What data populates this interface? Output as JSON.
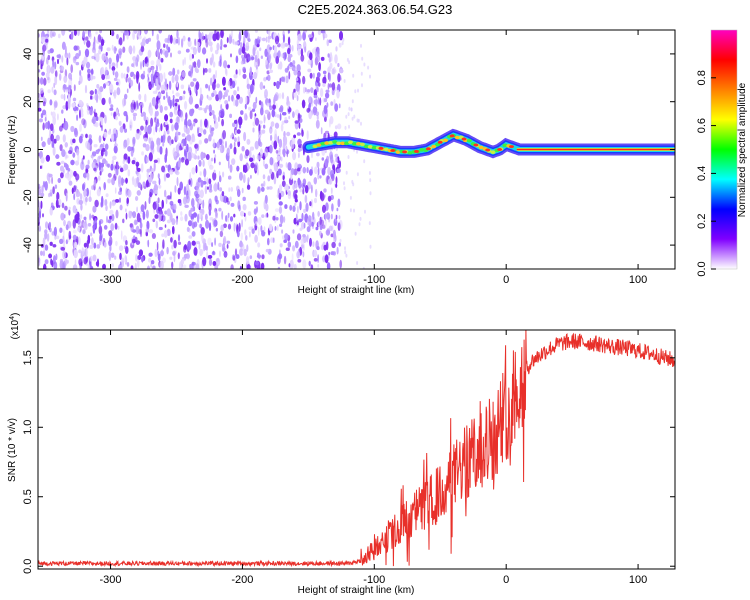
{
  "title": "C2E5.2024.363.06.54.G23",
  "chart_data": [
    {
      "type": "heatmap",
      "xlabel": "Height of straight line (km)",
      "ylabel": "Frequency (Hz)",
      "xlim": [
        -355,
        128
      ],
      "ylim": [
        -50,
        50
      ],
      "xticks": [
        -300,
        -200,
        -100,
        0,
        100
      ],
      "xtick_labels": [
        "-300",
        "-200",
        "-100",
        "0",
        "100"
      ],
      "yticks": [
        -40,
        -20,
        0,
        20,
        40
      ],
      "ytick_labels": [
        "-40",
        "-20",
        "0",
        "20",
        "40"
      ],
      "noise_region_x": [
        -355,
        -125
      ],
      "signal_track": {
        "x": [
          -150,
          -140,
          -130,
          -120,
          -110,
          -100,
          -90,
          -80,
          -70,
          -60,
          -50,
          -40,
          -30,
          -20,
          -10,
          -5,
          0,
          10,
          30,
          60,
          90,
          128
        ],
        "y": [
          1,
          2,
          3,
          3,
          2,
          1,
          0,
          -1,
          -1,
          0,
          3,
          6,
          4,
          1,
          -1,
          0,
          2,
          0,
          0,
          0,
          0,
          0
        ]
      },
      "colorbar": {
        "label": "Normalized spectral amplitude",
        "range": [
          0,
          1
        ],
        "ticks": [
          0.0,
          0.2,
          0.4,
          0.6,
          0.8
        ],
        "tick_labels": [
          "0.0",
          "0.2",
          "0.4",
          "0.6",
          "0.8"
        ],
        "colors": [
          "#ffffff",
          "#8000ff",
          "#0000ff",
          "#00ffff",
          "#00ff00",
          "#ffff00",
          "#ff8000",
          "#ff0000",
          "#ff00c0"
        ]
      },
      "colors": {
        "noise": "#7b2bf0",
        "track_core": "#ff2020"
      }
    },
    {
      "type": "line",
      "xlabel": "Height of straight line (km)",
      "ylabel": "SNR (10 * v/v)",
      "multiplier": "(x10",
      "multiplier_exp": "4",
      "multiplier_close": ")",
      "xlim": [
        -355,
        128
      ],
      "ylim": [
        -0.02,
        1.7
      ],
      "xticks": [
        -300,
        -200,
        -100,
        0,
        100
      ],
      "xtick_labels": [
        "-300",
        "-200",
        "-100",
        "0",
        "100"
      ],
      "yticks": [
        0.0,
        0.5,
        1.0,
        1.5
      ],
      "ytick_labels": [
        "0.0",
        "0.5",
        "1.0",
        "1.5"
      ],
      "series": [
        {
          "color": "#e8302a",
          "x": [
            -355,
            -300,
            -200,
            -120,
            -110,
            -100,
            -90,
            -80,
            -70,
            -60,
            -50,
            -40,
            -30,
            -20,
            -10,
            0,
            10,
            20,
            30,
            40,
            50,
            60,
            70,
            80,
            90,
            100,
            110,
            120,
            128
          ],
          "y": [
            0.02,
            0.02,
            0.02,
            0.02,
            0.04,
            0.12,
            0.2,
            0.3,
            0.38,
            0.45,
            0.52,
            0.65,
            0.75,
            0.82,
            0.95,
            1.1,
            1.35,
            1.48,
            1.55,
            1.6,
            1.62,
            1.61,
            1.6,
            1.58,
            1.57,
            1.55,
            1.53,
            1.5,
            1.48
          ]
        }
      ]
    }
  ]
}
